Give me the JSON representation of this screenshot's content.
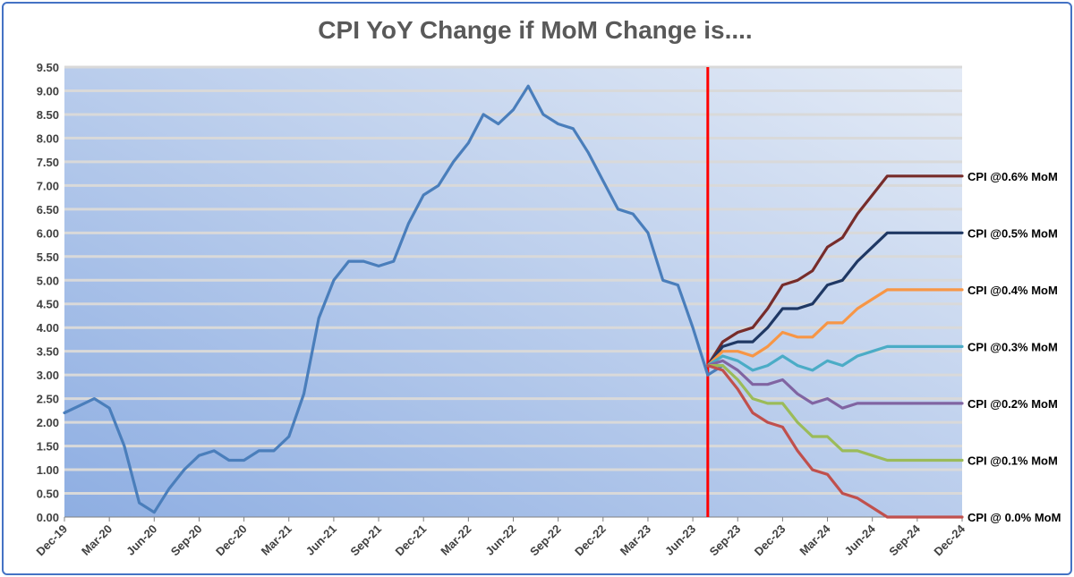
{
  "chart_data": {
    "type": "line",
    "title": "CPI YoY Change if MoM Change is....",
    "xlabel": "",
    "ylabel": "",
    "ylim": [
      0,
      9.5
    ],
    "yticks": [
      "0.00",
      "0.50",
      "1.00",
      "1.50",
      "2.00",
      "2.50",
      "3.00",
      "3.50",
      "4.00",
      "4.50",
      "5.00",
      "5.50",
      "6.00",
      "6.50",
      "7.00",
      "7.50",
      "8.00",
      "8.50",
      "9.00",
      "9.50"
    ],
    "xticks": [
      "Dec-19",
      "Mar-20",
      "Jun-20",
      "Sep-20",
      "Dec-20",
      "Mar-21",
      "Jun-21",
      "Sep-21",
      "Dec-21",
      "Mar-22",
      "Jun-22",
      "Sep-22",
      "Dec-22",
      "Mar-23",
      "Jun-23",
      "Sep-23",
      "Dec-23",
      "Mar-24",
      "Jun-24",
      "Sep-24",
      "Dec-24"
    ],
    "x_start": "Dec-19",
    "grid": true,
    "vertical_marker": {
      "x": "Jul-23",
      "color": "#ff0000"
    },
    "series": [
      {
        "color": "#4a7ebb",
        "start": "Dec-19",
        "values": [
          2.2,
          2.35,
          2.5,
          2.3,
          1.5,
          0.3,
          0.1,
          0.6,
          1.0,
          1.3,
          1.4,
          1.2,
          1.2,
          1.4,
          1.4,
          1.7,
          2.6,
          4.2,
          5.0,
          5.4,
          5.4,
          5.3,
          5.4,
          6.2,
          6.8,
          7.0,
          7.5,
          7.9,
          8.5,
          8.3,
          8.6,
          9.1,
          8.5,
          8.3,
          8.2,
          7.7,
          7.1,
          6.5,
          6.4,
          6.0,
          5.0,
          4.9,
          4.0,
          3.0,
          3.2
        ]
      },
      {
        "name": "CPI @0.6% MoM",
        "color": "#772c2a",
        "start": "Jul-23",
        "values": [
          3.2,
          3.7,
          3.9,
          4.0,
          4.4,
          4.9,
          5.0,
          5.2,
          5.7,
          5.9,
          6.4,
          6.8,
          7.2,
          7.2,
          7.2,
          7.2,
          7.2,
          7.2
        ]
      },
      {
        "name": "CPI @0.5% MoM",
        "color": "#1f3864",
        "start": "Jul-23",
        "values": [
          3.2,
          3.6,
          3.7,
          3.7,
          4.0,
          4.4,
          4.4,
          4.5,
          4.9,
          5.0,
          5.4,
          5.7,
          6.0,
          6.0,
          6.0,
          6.0,
          6.0,
          6.0
        ]
      },
      {
        "name": "CPI @0.4% MoM",
        "color": "#f79646",
        "start": "Jul-23",
        "values": [
          3.2,
          3.5,
          3.5,
          3.4,
          3.6,
          3.9,
          3.8,
          3.8,
          4.1,
          4.1,
          4.4,
          4.6,
          4.8,
          4.8,
          4.8,
          4.8,
          4.8,
          4.8
        ]
      },
      {
        "name": "CPI @0.3% MoM",
        "color": "#4bacc6",
        "start": "Jul-23",
        "values": [
          3.2,
          3.4,
          3.3,
          3.1,
          3.2,
          3.4,
          3.2,
          3.1,
          3.3,
          3.2,
          3.4,
          3.5,
          3.6,
          3.6,
          3.6,
          3.6,
          3.6,
          3.6
        ]
      },
      {
        "name": "CPI @0.2% MoM",
        "color": "#8064a2",
        "start": "Jul-23",
        "values": [
          3.2,
          3.3,
          3.1,
          2.8,
          2.8,
          2.9,
          2.6,
          2.4,
          2.5,
          2.3,
          2.4,
          2.4,
          2.4,
          2.4,
          2.4,
          2.4,
          2.4,
          2.4
        ]
      },
      {
        "name": "CPI @0.1% MoM",
        "color": "#9bbb59",
        "start": "Jul-23",
        "values": [
          3.2,
          3.2,
          2.9,
          2.5,
          2.4,
          2.4,
          2.0,
          1.7,
          1.7,
          1.4,
          1.4,
          1.3,
          1.2,
          1.2,
          1.2,
          1.2,
          1.2,
          1.2
        ]
      },
      {
        "name": "CPI @ 0.0% MoM",
        "color": "#c0504d",
        "start": "Jul-23",
        "values": [
          3.2,
          3.1,
          2.7,
          2.2,
          2.0,
          1.9,
          1.4,
          1.0,
          0.9,
          0.5,
          0.4,
          0.2,
          0.0,
          0.0,
          0.0,
          0.0,
          0.0,
          0.0
        ]
      }
    ]
  }
}
